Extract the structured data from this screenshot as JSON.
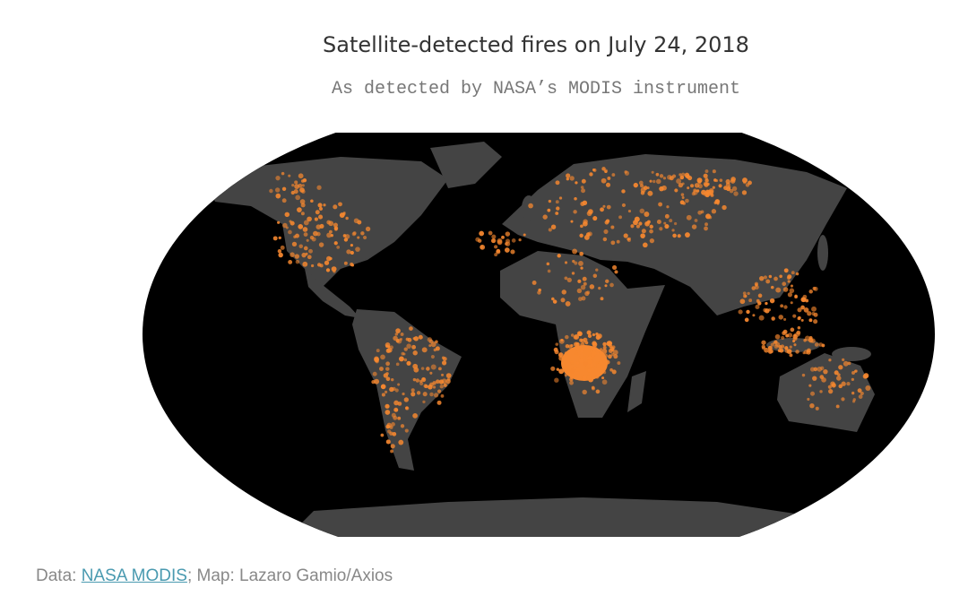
{
  "header": {
    "title": "Satellite-detected fires on July 24, 2018",
    "subtitle": "As detected by NASA’s MODIS instrument"
  },
  "footer": {
    "prefix": "Data:",
    "link": "NASA MODIS",
    "rest": "; Map: Lazaro Gamio/Axios"
  }
}
